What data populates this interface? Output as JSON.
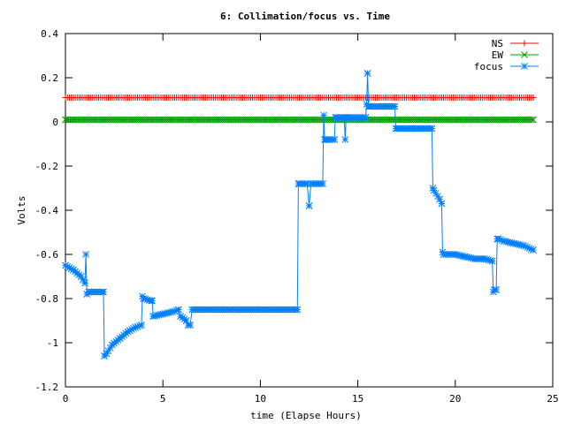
{
  "chart_data": {
    "type": "line",
    "title": "6: Collimation/focus vs. Time",
    "xlabel": "time (Elapse Hours)",
    "ylabel": "Volts",
    "xlim": [
      0,
      25
    ],
    "ylim": [
      -1.2,
      0.4
    ],
    "xticks": [
      0,
      5,
      10,
      15,
      20,
      25
    ],
    "xtick_labels": [
      "0",
      "5",
      "10",
      "15",
      "20",
      "25"
    ],
    "yticks": [
      -1.2,
      -1,
      -0.8,
      -0.6,
      -0.4,
      -0.2,
      0,
      0.2,
      0.4
    ],
    "ytick_labels": [
      "-1.2",
      "-1",
      "-0.8",
      "-0.6",
      "-0.4",
      "-0.2",
      "0",
      "0.2",
      "0.4"
    ],
    "grid": false,
    "legend_position": "top-right",
    "series": [
      {
        "name": "NS",
        "color": "#ff0000",
        "marker": "plus",
        "x": [
          0,
          24
        ],
        "y": [
          0.11,
          0.11
        ]
      },
      {
        "name": "EW",
        "color": "#00a000",
        "marker": "cross",
        "x": [
          0,
          24
        ],
        "y": [
          0.01,
          0.01
        ]
      },
      {
        "name": "focus",
        "color": "#0080ff",
        "marker": "star",
        "x": [
          0,
          0.4,
          0.8,
          1.0,
          1.05,
          1.1,
          1.2,
          1.5,
          1.95,
          2.0,
          2.1,
          2.4,
          2.8,
          3.2,
          3.6,
          3.9,
          3.95,
          4.0,
          4.4,
          4.45,
          4.5,
          5.0,
          5.5,
          5.8,
          5.9,
          6.2,
          6.3,
          6.4,
          6.5,
          6.6,
          7.0,
          8.0,
          9.0,
          10.0,
          11.0,
          11.9,
          11.95,
          12.0,
          12.4,
          12.5,
          12.6,
          13.0,
          13.2,
          13.25,
          13.3,
          13.35,
          13.4,
          13.8,
          13.85,
          13.9,
          14.3,
          14.35,
          14.4,
          14.45,
          14.5,
          15.0,
          15.4,
          15.45,
          15.5,
          15.55,
          15.6,
          16.0,
          16.5,
          16.9,
          16.95,
          17.0,
          17.5,
          18.0,
          18.8,
          18.85,
          18.9,
          19.2,
          19.3,
          19.35,
          19.4,
          20.0,
          20.5,
          21.0,
          21.5,
          21.9,
          21.95,
          22.0,
          22.1,
          22.15,
          22.2,
          22.5,
          23.0,
          23.5,
          24.0
        ],
        "y": [
          -0.65,
          -0.67,
          -0.7,
          -0.73,
          -0.6,
          -0.78,
          -0.77,
          -0.77,
          -0.77,
          -1.06,
          -1.05,
          -1.01,
          -0.98,
          -0.95,
          -0.93,
          -0.92,
          -0.79,
          -0.8,
          -0.81,
          -0.81,
          -0.88,
          -0.87,
          -0.86,
          -0.85,
          -0.88,
          -0.9,
          -0.92,
          -0.92,
          -0.85,
          -0.85,
          -0.85,
          -0.85,
          -0.85,
          -0.85,
          -0.85,
          -0.85,
          -0.28,
          -0.28,
          -0.28,
          -0.38,
          -0.28,
          -0.28,
          -0.28,
          0.03,
          -0.08,
          -0.08,
          -0.08,
          -0.08,
          0.02,
          0.02,
          0.02,
          -0.08,
          0.02,
          0.02,
          0.02,
          0.02,
          0.02,
          0.08,
          0.22,
          0.07,
          0.07,
          0.07,
          0.07,
          0.07,
          -0.03,
          -0.03,
          -0.03,
          -0.03,
          -0.03,
          -0.3,
          -0.31,
          -0.35,
          -0.37,
          -0.59,
          -0.6,
          -0.6,
          -0.61,
          -0.62,
          -0.62,
          -0.63,
          -0.77,
          -0.76,
          -0.76,
          -0.53,
          -0.53,
          -0.54,
          -0.55,
          -0.56,
          -0.58
        ]
      }
    ]
  }
}
